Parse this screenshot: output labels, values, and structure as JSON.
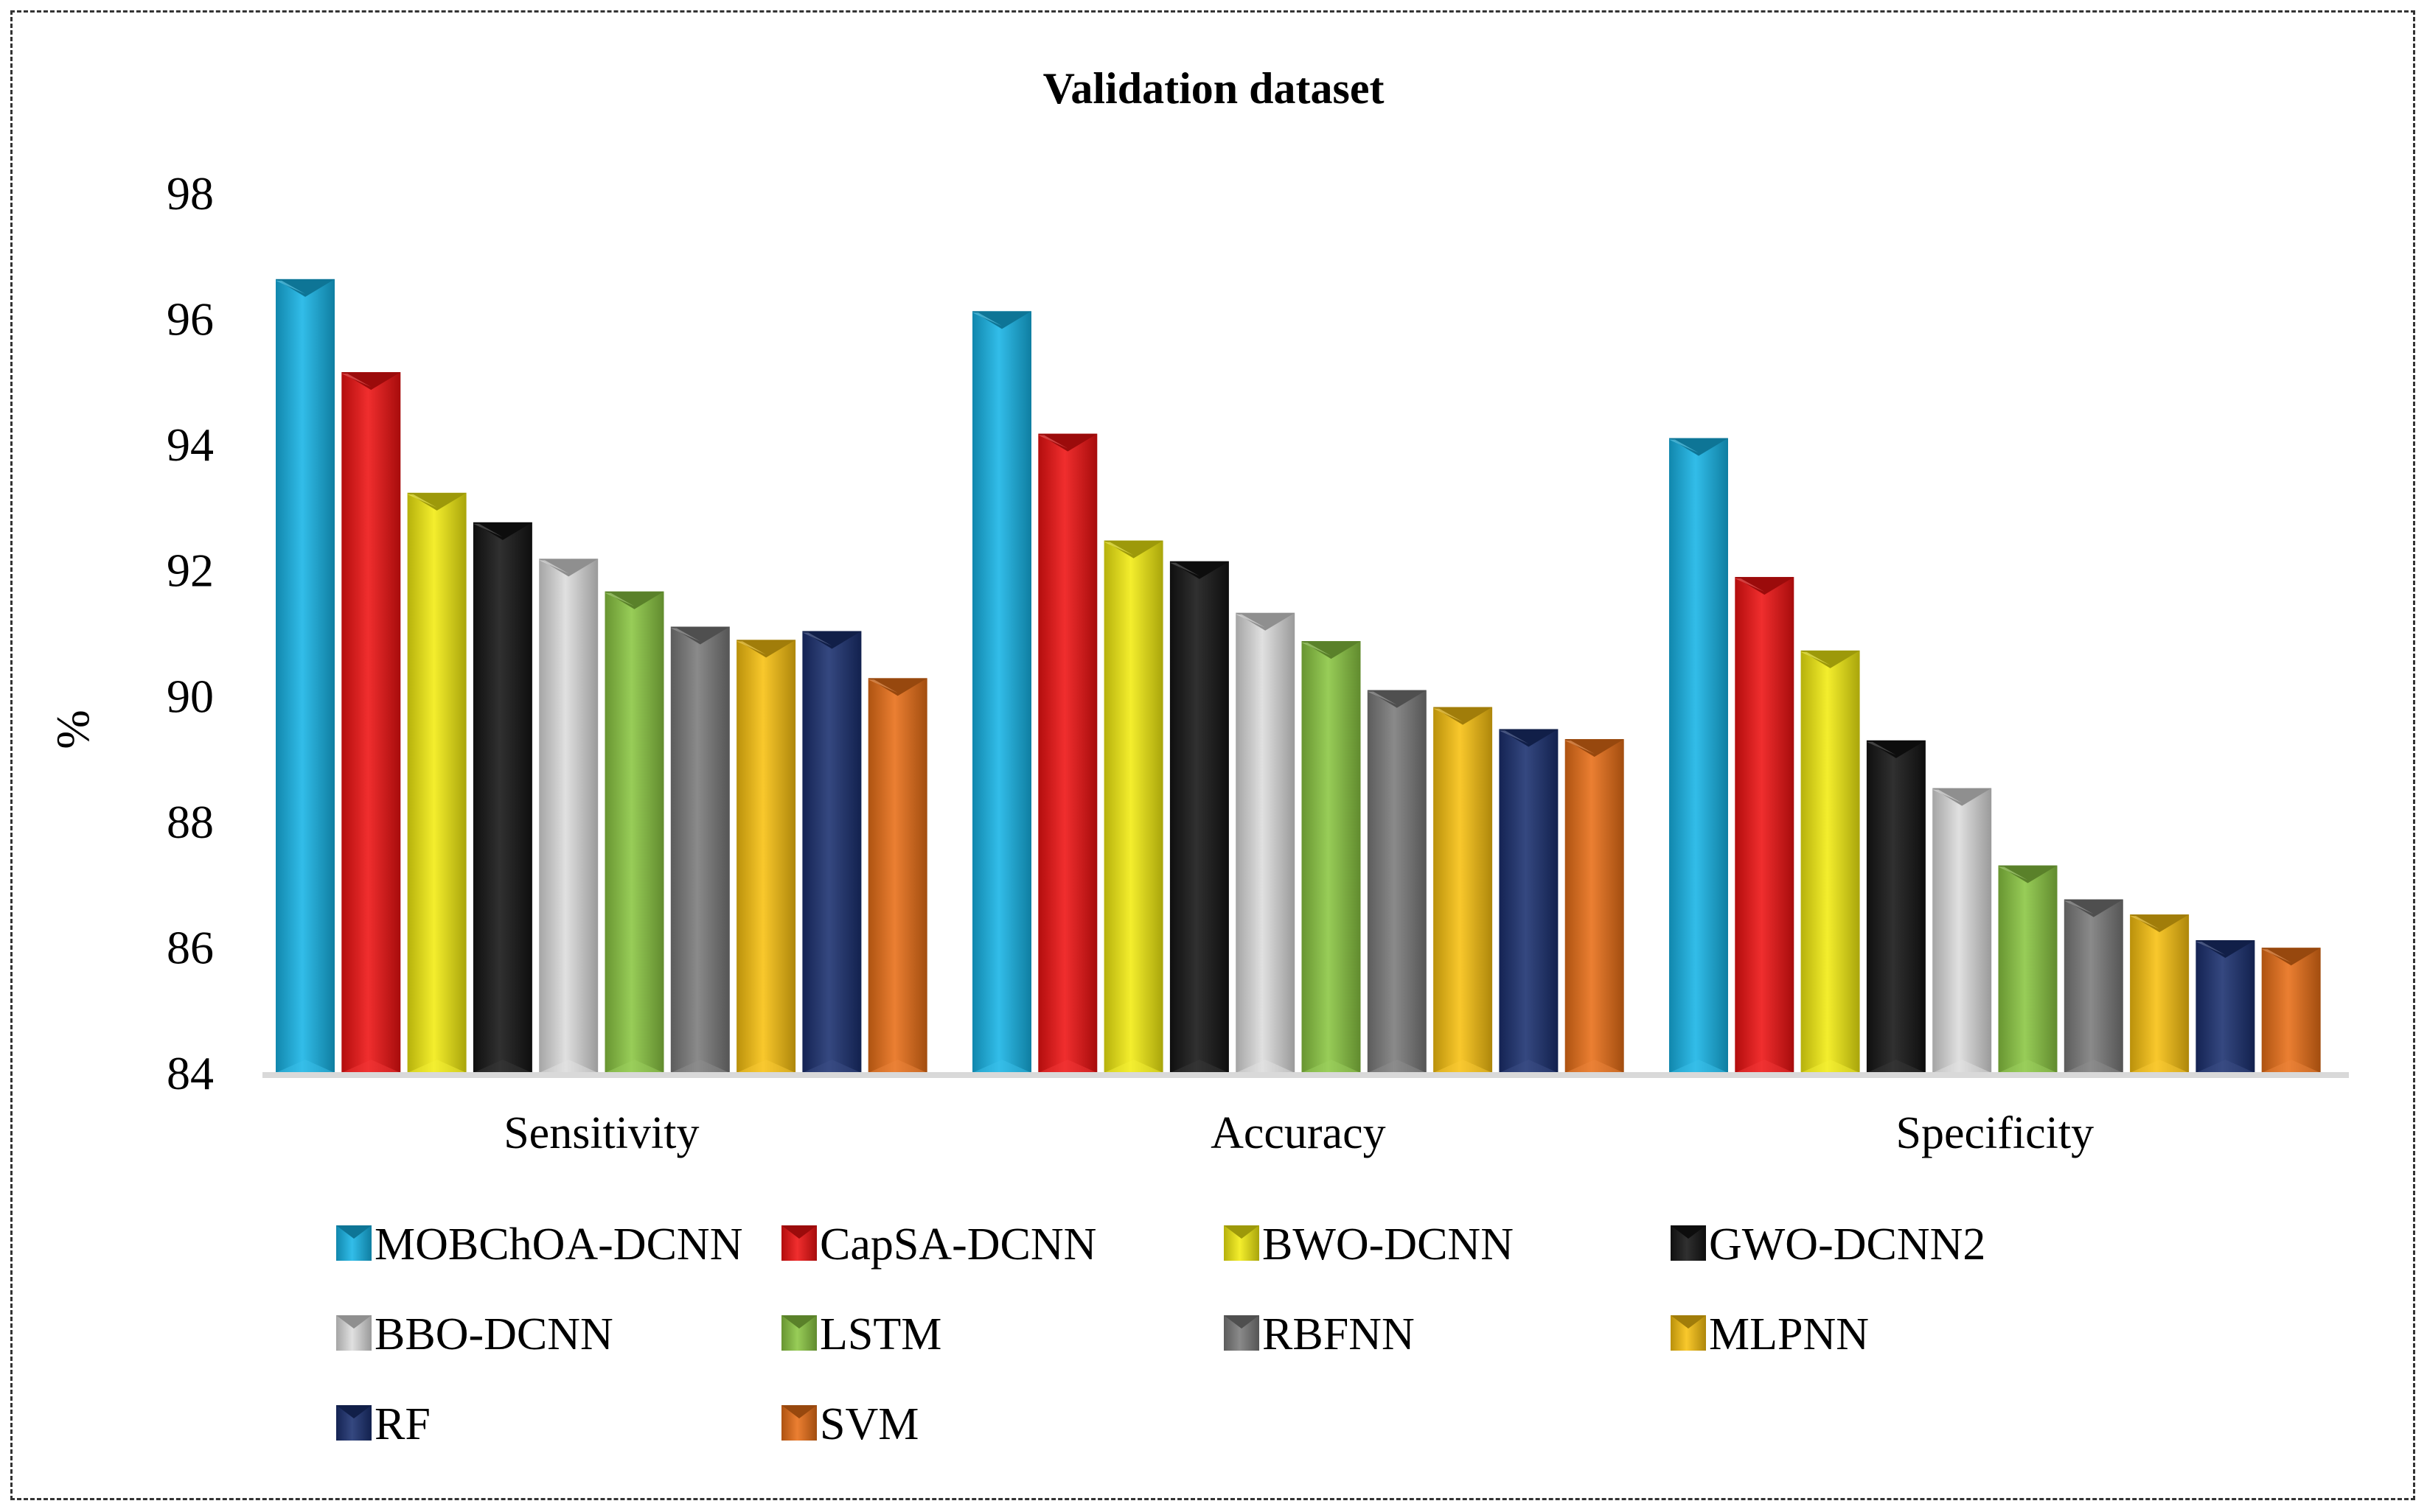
{
  "chart_data": {
    "type": "bar",
    "title": "Validation dataset",
    "xlabel": "",
    "ylabel": "%",
    "ylim": [
      84,
      98
    ],
    "yticks": [
      84,
      86,
      88,
      90,
      92,
      94,
      96,
      98
    ],
    "grid": false,
    "legend_position": "bottom",
    "categories": [
      "Sensitivity",
      "Accuracy",
      "Specificity"
    ],
    "series": [
      {
        "name": "MOBChOA-DCNN",
        "color": "#16b4e6",
        "values": [
          96.63,
          96.12,
          94.1
        ]
      },
      {
        "name": "CapSA-DCNN",
        "color": "#ee1111",
        "values": [
          95.15,
          94.17,
          91.89
        ]
      },
      {
        "name": "BWO-DCNN",
        "color": "#f2ec10",
        "values": [
          93.23,
          92.47,
          90.72
        ]
      },
      {
        "name": "GWO-DCNN2",
        "color": "#141414",
        "values": [
          92.76,
          92.14,
          89.29
        ]
      },
      {
        "name": "BBO-DCNN",
        "color": "#dcdcdc",
        "values": [
          92.18,
          91.32,
          88.53
        ]
      },
      {
        "name": "LSTM",
        "color": "#8ac641",
        "values": [
          91.66,
          90.87,
          87.3
        ]
      },
      {
        "name": "RBFNN",
        "color": "#7a7a7a",
        "values": [
          91.1,
          90.09,
          86.76
        ]
      },
      {
        "name": "MLPNN",
        "color": "#f8c10f",
        "values": [
          90.89,
          89.82,
          86.52
        ]
      },
      {
        "name": "RF",
        "color": "#1a2f6f",
        "values": [
          91.03,
          89.47,
          86.11
        ]
      },
      {
        "name": "SVM",
        "color": "#e86e16",
        "values": [
          90.28,
          89.31,
          85.99
        ]
      }
    ]
  }
}
